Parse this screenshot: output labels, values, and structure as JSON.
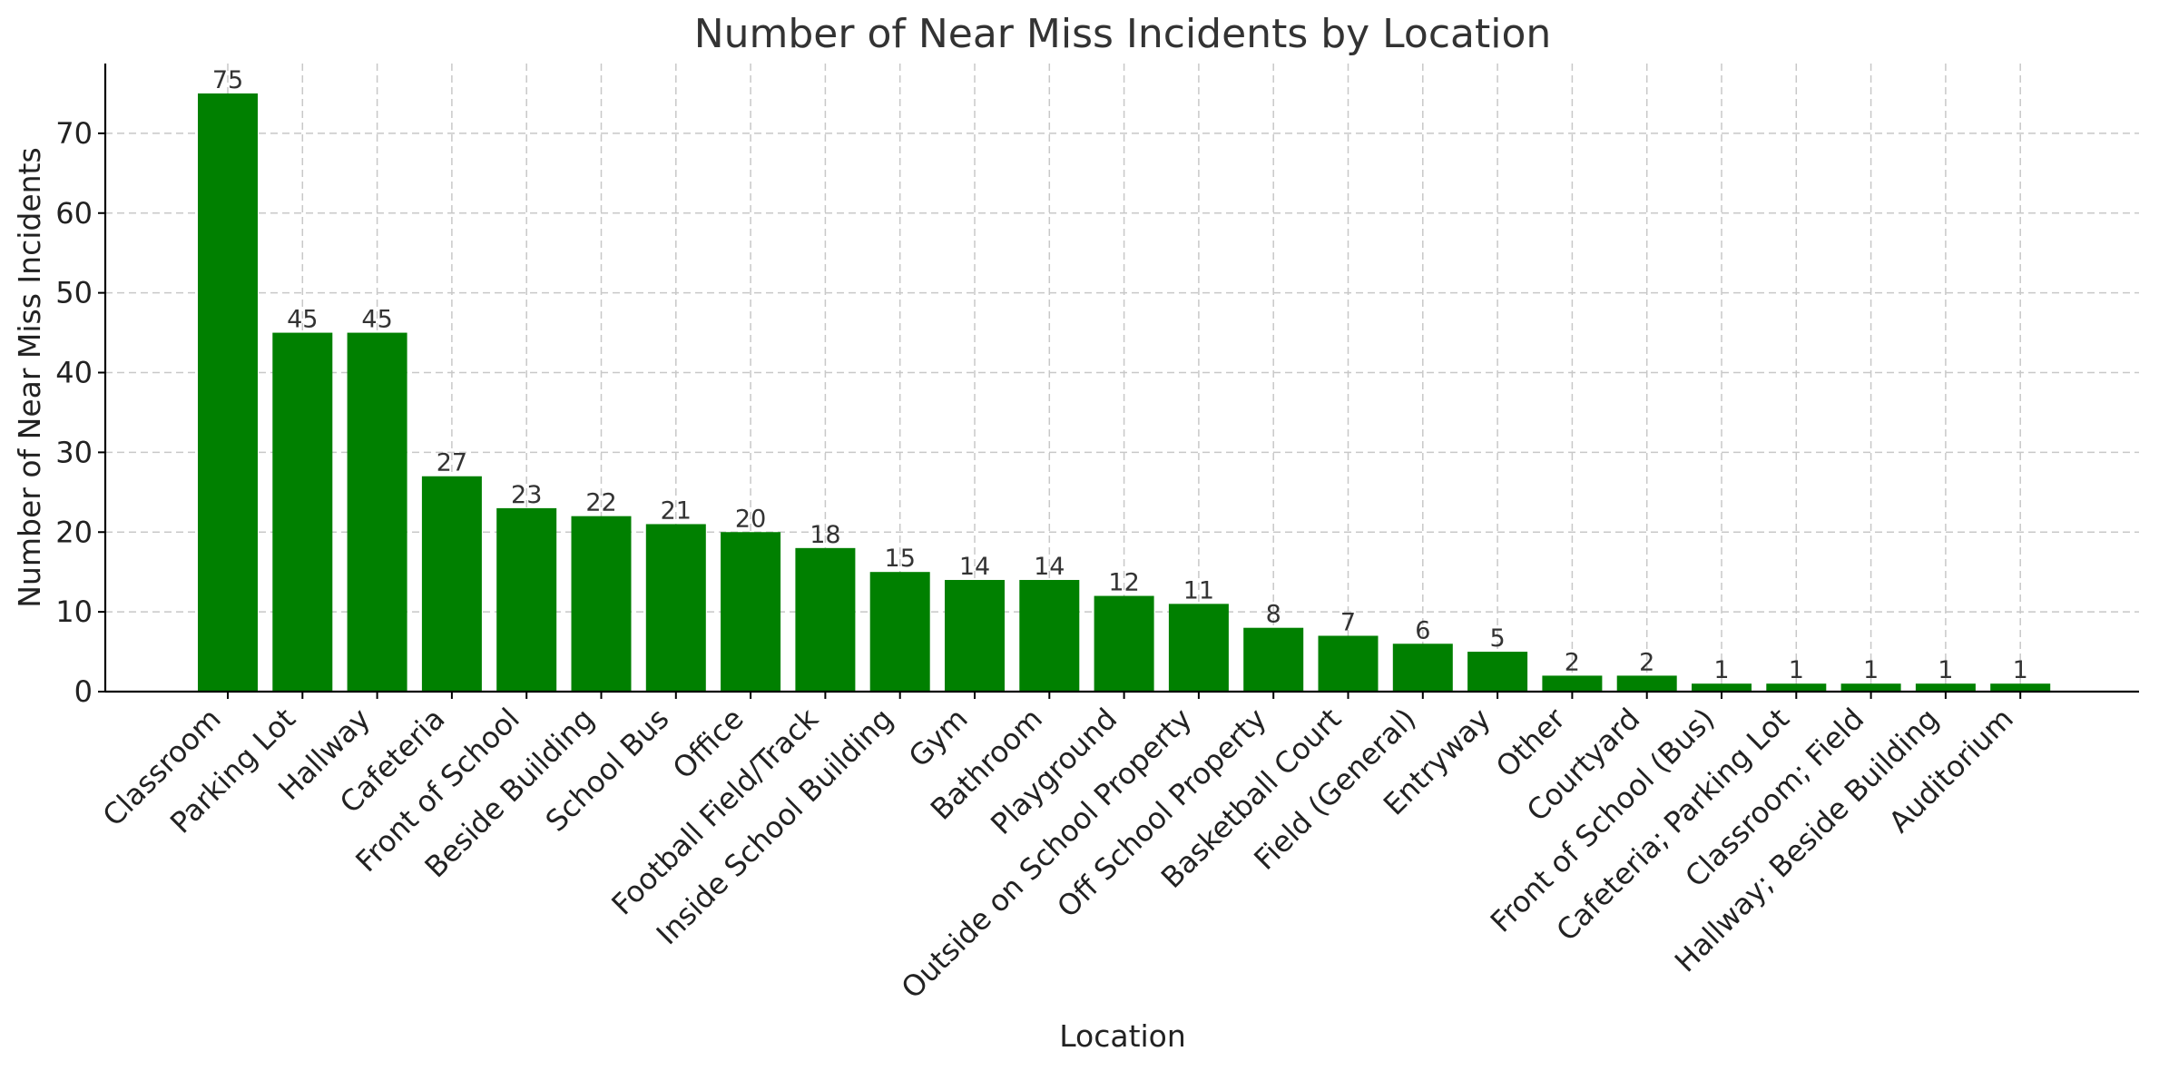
{
  "chart_data": {
    "type": "bar",
    "title": "Number of Near Miss Incidents by Location",
    "xlabel": "Location",
    "ylabel": "Number of Near Miss Incidents",
    "categories": [
      "Classroom",
      "Parking Lot",
      "Hallway",
      "Cafeteria",
      "Front of School",
      "Beside Building",
      "School Bus",
      "Office",
      "Football Field/Track",
      "Inside School Building",
      "Gym",
      "Bathroom",
      "Playground",
      "Outside on School Property",
      "Off School Property",
      "Basketball Court",
      "Field (General)",
      "Entryway",
      "Other",
      "Courtyard",
      "Front of School (Bus)",
      "Cafeteria; Parking Lot",
      "Classroom; Field",
      "Hallway; Beside Building",
      "Auditorium"
    ],
    "values": [
      75,
      45,
      45,
      27,
      23,
      22,
      21,
      20,
      18,
      15,
      14,
      14,
      12,
      11,
      8,
      7,
      6,
      5,
      2,
      2,
      1,
      1,
      1,
      1,
      1
    ],
    "yticks": [
      0,
      10,
      20,
      30,
      40,
      50,
      60,
      70
    ],
    "ylim": [
      0,
      78.75
    ],
    "grid": true,
    "bar_color": "#008000",
    "value_labels": true
  }
}
